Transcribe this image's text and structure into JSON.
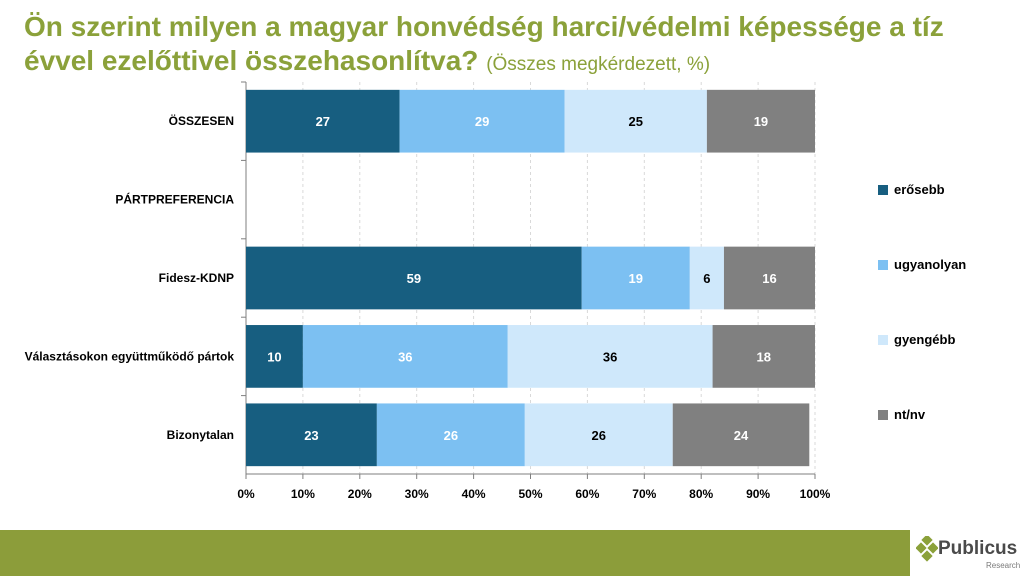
{
  "title": {
    "main": "Ön szerint milyen a magyar honvédség harci/védelmi képessége a tíz évvel ezelőttivel összehasonlítva?",
    "sub": "(Összes megkérdezett, %)"
  },
  "logo": {
    "name": "Publicus",
    "sub": "Research"
  },
  "chart_data": {
    "type": "bar",
    "orientation": "horizontal",
    "stacked": true,
    "categories": [
      "ÖSSZESEN",
      "PÁRTPREFERENCIA",
      "Fidesz-KDNP",
      "Választásokon együttműködő pártok",
      "Bizonytalan"
    ],
    "series": [
      {
        "name": "erősebb",
        "values": [
          27,
          null,
          59,
          10,
          23
        ]
      },
      {
        "name": "ugyanolyan",
        "values": [
          29,
          null,
          19,
          36,
          26
        ]
      },
      {
        "name": "gyengébb",
        "values": [
          25,
          null,
          6,
          36,
          26
        ]
      },
      {
        "name": "nt/nv",
        "values": [
          19,
          null,
          16,
          18,
          24
        ]
      }
    ],
    "colors": [
      "#175e80",
      "#7cc0f2",
      "#cfe8fb",
      "#808080"
    ],
    "label_colors": [
      "#ffffff",
      "#ffffff",
      "#000000",
      "#ffffff"
    ],
    "xlim": [
      0,
      100
    ],
    "xticks": [
      "0%",
      "10%",
      "20%",
      "30%",
      "40%",
      "50%",
      "60%",
      "70%",
      "80%",
      "90%",
      "100%"
    ],
    "grid": "vertical dashed",
    "legend_position": "right"
  }
}
